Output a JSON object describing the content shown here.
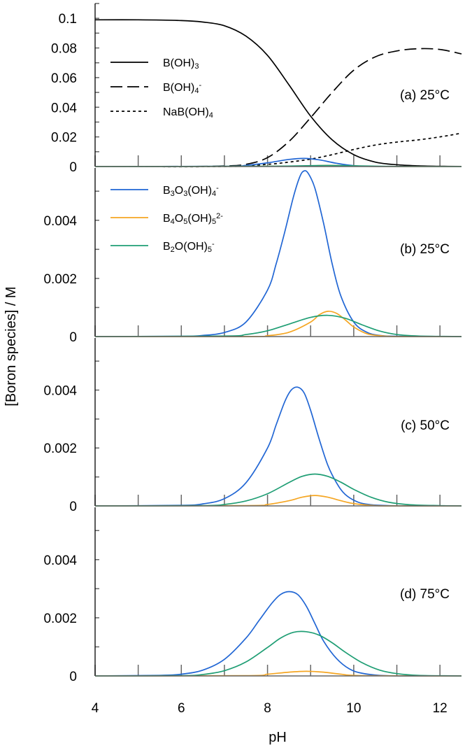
{
  "figure": {
    "xlabel": "pH",
    "ylabel": "[Boron species] / M",
    "xlim": [
      4,
      12.5
    ],
    "x_ticks": [
      "4",
      "6",
      "8",
      "10",
      "12"
    ]
  },
  "colors": {
    "axis": "#000000",
    "tick": "#666666",
    "B3O3OH4": "#2166d4",
    "B4O5OH5": "#f5a623",
    "B2OOH5": "#1f9e74",
    "main": "#000000"
  },
  "legend_top": [
    {
      "key": "BOH3",
      "style": "solid",
      "text": [
        [
          "B(OH)",
          ""
        ],
        [
          "3",
          "sub"
        ]
      ]
    },
    {
      "key": "BOH4",
      "style": "dashed",
      "text": [
        [
          "B(OH)",
          ""
        ],
        [
          "4",
          "sub"
        ],
        [
          "-",
          "sup"
        ]
      ]
    },
    {
      "key": "NaBOH4",
      "style": "dotted",
      "text": [
        [
          "NaB(OH)",
          ""
        ],
        [
          "4",
          "sub"
        ]
      ]
    }
  ],
  "legend_bottom": [
    {
      "key": "B3O3OH4",
      "color": "#2166d4",
      "text": [
        [
          "B",
          ""
        ],
        [
          "3",
          "sub"
        ],
        [
          "O",
          ""
        ],
        [
          "3",
          "sub"
        ],
        [
          "(OH)",
          ""
        ],
        [
          "4",
          "sub"
        ],
        [
          "-",
          "sup"
        ]
      ]
    },
    {
      "key": "B4O5OH5",
      "color": "#f5a623",
      "text": [
        [
          "B",
          ""
        ],
        [
          "4",
          "sub"
        ],
        [
          "O",
          ""
        ],
        [
          "5",
          "sub"
        ],
        [
          "(OH)",
          ""
        ],
        [
          "5",
          "sub"
        ],
        [
          "2-",
          "sup"
        ]
      ]
    },
    {
      "key": "B2OOH5",
      "color": "#1f9e74",
      "text": [
        [
          "B",
          ""
        ],
        [
          "2",
          "sub"
        ],
        [
          "O(OH)",
          ""
        ],
        [
          "5",
          "sub"
        ],
        [
          "-",
          "sup"
        ]
      ]
    }
  ],
  "chart_data": [
    {
      "type": "line",
      "panel_label": "(a) 25°C",
      "ylim": [
        0,
        0.11
      ],
      "y_ticks": [
        "0",
        "0.02",
        "0.04",
        "0.06",
        "0.08",
        "0.1"
      ],
      "series": [
        {
          "name": "B(OH)3",
          "style": "solid",
          "x": [
            4,
            5,
            6,
            6.5,
            7,
            7.5,
            8,
            8.5,
            9,
            9.5,
            10,
            10.5,
            11,
            11.5,
            12,
            12.5
          ],
          "y": [
            0.099,
            0.099,
            0.0985,
            0.0975,
            0.095,
            0.088,
            0.075,
            0.055,
            0.034,
            0.018,
            0.008,
            0.003,
            0.0012,
            0.0005,
            0.0002,
            0.0001
          ]
        },
        {
          "name": "B(OH)4-",
          "style": "dashed",
          "x": [
            4,
            6,
            7,
            7.5,
            8,
            8.5,
            9,
            9.5,
            10,
            10.5,
            11,
            11.5,
            12,
            12.5
          ],
          "y": [
            0,
            0,
            0.0004,
            0.0015,
            0.006,
            0.017,
            0.033,
            0.05,
            0.065,
            0.074,
            0.078,
            0.0795,
            0.079,
            0.076
          ]
        },
        {
          "name": "NaB(OH)4",
          "style": "dotted",
          "x": [
            4,
            7,
            8,
            8.5,
            9,
            9.5,
            10,
            10.5,
            11,
            11.5,
            12,
            12.5
          ],
          "y": [
            0,
            0,
            0.0015,
            0.003,
            0.005,
            0.008,
            0.0115,
            0.0145,
            0.0165,
            0.018,
            0.02,
            0.0225
          ]
        },
        {
          "name": "B3O3(OH)4-",
          "style": "solid",
          "color": "#2166d4",
          "x": [
            4,
            7,
            7.5,
            8,
            8.5,
            8.85,
            9.2,
            9.6,
            10,
            10.5,
            12.5
          ],
          "y": [
            0,
            0.0002,
            0.0008,
            0.0025,
            0.0048,
            0.0055,
            0.0045,
            0.0022,
            0.0006,
            0.0001,
            0
          ]
        },
        {
          "name": "B4O5(OH)5 2-",
          "style": "solid",
          "color": "#f5a623",
          "x": [
            4,
            8.5,
            9.4,
            10.5,
            12.5
          ],
          "y": [
            0,
            0.0002,
            0.0008,
            0.0001,
            0
          ]
        },
        {
          "name": "B2O(OH)5-",
          "style": "solid",
          "color": "#1f9e74",
          "x": [
            4,
            8,
            9.4,
            11,
            12.5
          ],
          "y": [
            0,
            0.0002,
            0.0007,
            0.0001,
            0
          ]
        }
      ]
    },
    {
      "type": "line",
      "panel_label": "(b) 25°C",
      "ylim": [
        0,
        0.0058
      ],
      "y_ticks": [
        "0",
        "0.002",
        "0.004"
      ],
      "series": [
        {
          "name": "B3O3(OH)4-",
          "color": "#2166d4",
          "x": [
            4,
            6,
            6.5,
            7,
            7.5,
            8,
            8.2,
            8.4,
            8.6,
            8.75,
            8.85,
            8.95,
            9.1,
            9.3,
            9.5,
            9.7,
            10,
            10.3,
            10.6,
            11,
            12.5
          ],
          "y": [
            0,
            1e-05,
            4e-05,
            0.00014,
            0.0005,
            0.0016,
            0.0025,
            0.0036,
            0.0048,
            0.0055,
            0.0057,
            0.0056,
            0.0051,
            0.0039,
            0.0025,
            0.0014,
            0.0005,
            0.00015,
            4e-05,
            1e-05,
            0
          ]
        },
        {
          "name": "B4O5(OH)5 2-",
          "color": "#f5a623",
          "x": [
            4,
            7.5,
            8,
            8.5,
            9,
            9.2,
            9.4,
            9.6,
            9.8,
            10,
            10.3,
            10.6,
            11,
            12.5
          ],
          "y": [
            0,
            0,
            3e-05,
            0.00015,
            0.0005,
            0.00075,
            0.00087,
            0.0008,
            0.00058,
            0.00033,
            0.0001,
            3e-05,
            0,
            0
          ]
        },
        {
          "name": "B2O(OH)5-",
          "color": "#1f9e74",
          "x": [
            4,
            7,
            7.5,
            8,
            8.5,
            9,
            9.4,
            9.8,
            10.2,
            10.6,
            11,
            11.5,
            12.5
          ],
          "y": [
            0,
            2e-05,
            7e-05,
            0.0002,
            0.00043,
            0.00066,
            0.00073,
            0.00063,
            0.0004,
            0.00019,
            7e-05,
            2e-05,
            0
          ]
        }
      ]
    },
    {
      "type": "line",
      "panel_label": "(c) 50°C",
      "ylim": [
        0,
        0.0058
      ],
      "y_ticks": [
        "0",
        "0.002",
        "0.004"
      ],
      "series": [
        {
          "name": "B3O3(OH)4-",
          "color": "#2166d4",
          "x": [
            4,
            6,
            6.5,
            7,
            7.5,
            8,
            8.2,
            8.4,
            8.55,
            8.7,
            8.85,
            9,
            9.2,
            9.4,
            9.6,
            9.8,
            10.1,
            10.4,
            10.8,
            11.3,
            12.5
          ],
          "y": [
            0,
            2e-05,
            7e-05,
            0.00025,
            0.0008,
            0.002,
            0.0028,
            0.0036,
            0.004,
            0.0041,
            0.0039,
            0.0033,
            0.0023,
            0.0014,
            0.0008,
            0.0004,
            0.00013,
            4e-05,
            1e-05,
            0,
            0
          ]
        },
        {
          "name": "B4O5(OH)5 2-",
          "color": "#f5a623",
          "x": [
            4,
            7.5,
            8,
            8.5,
            8.8,
            9.1,
            9.4,
            9.7,
            10,
            10.4,
            10.8,
            12.5
          ],
          "y": [
            0,
            1e-05,
            5e-05,
            0.00018,
            0.0003,
            0.00036,
            0.0003,
            0.00018,
            8e-05,
            2e-05,
            0,
            0
          ]
        },
        {
          "name": "B2O(OH)5-",
          "color": "#1f9e74",
          "x": [
            4,
            6.5,
            7,
            7.5,
            8,
            8.5,
            8.8,
            9.1,
            9.4,
            9.7,
            10,
            10.4,
            10.8,
            11.3,
            12,
            12.5
          ],
          "y": [
            0,
            1e-05,
            5e-05,
            0.00017,
            0.00042,
            0.00081,
            0.00102,
            0.0011,
            0.00102,
            0.00082,
            0.00057,
            0.0003,
            0.00013,
            4e-05,
            1e-05,
            0
          ]
        }
      ]
    },
    {
      "type": "line",
      "panel_label": "(d) 75°C",
      "ylim": [
        0,
        0.0058
      ],
      "y_ticks": [
        "0",
        "0.002",
        "0.004"
      ],
      "series": [
        {
          "name": "B3O3(OH)4-",
          "color": "#2166d4",
          "x": [
            4,
            5.5,
            6,
            6.5,
            7,
            7.5,
            7.8,
            8.1,
            8.3,
            8.5,
            8.7,
            8.9,
            9.1,
            9.3,
            9.6,
            9.9,
            10.2,
            10.6,
            11.1,
            12.5
          ],
          "y": [
            0,
            2e-05,
            6e-05,
            0.0002,
            0.00057,
            0.0013,
            0.0019,
            0.0025,
            0.0028,
            0.0029,
            0.0028,
            0.0024,
            0.0018,
            0.0012,
            0.0006,
            0.00024,
            9e-05,
            2e-05,
            0,
            0
          ]
        },
        {
          "name": "B4O5(OH)5 2-",
          "color": "#f5a623",
          "x": [
            4,
            7.5,
            8,
            8.5,
            8.9,
            9.3,
            9.7,
            10.2,
            12.5
          ],
          "y": [
            0,
            1e-05,
            6e-05,
            0.00013,
            0.00016,
            0.00013,
            6e-05,
            1e-05,
            0
          ]
        },
        {
          "name": "B2O(OH)5-",
          "color": "#1f9e74",
          "x": [
            4,
            6,
            6.5,
            7,
            7.5,
            8,
            8.3,
            8.6,
            8.9,
            9.2,
            9.5,
            9.8,
            10.2,
            10.6,
            11,
            11.5,
            12.5
          ],
          "y": [
            0,
            1e-05,
            5e-05,
            0.00018,
            0.00048,
            0.00098,
            0.0013,
            0.0015,
            0.00152,
            0.0014,
            0.00114,
            0.00082,
            0.00045,
            0.0002,
            8e-05,
            2e-05,
            0
          ]
        }
      ]
    }
  ]
}
